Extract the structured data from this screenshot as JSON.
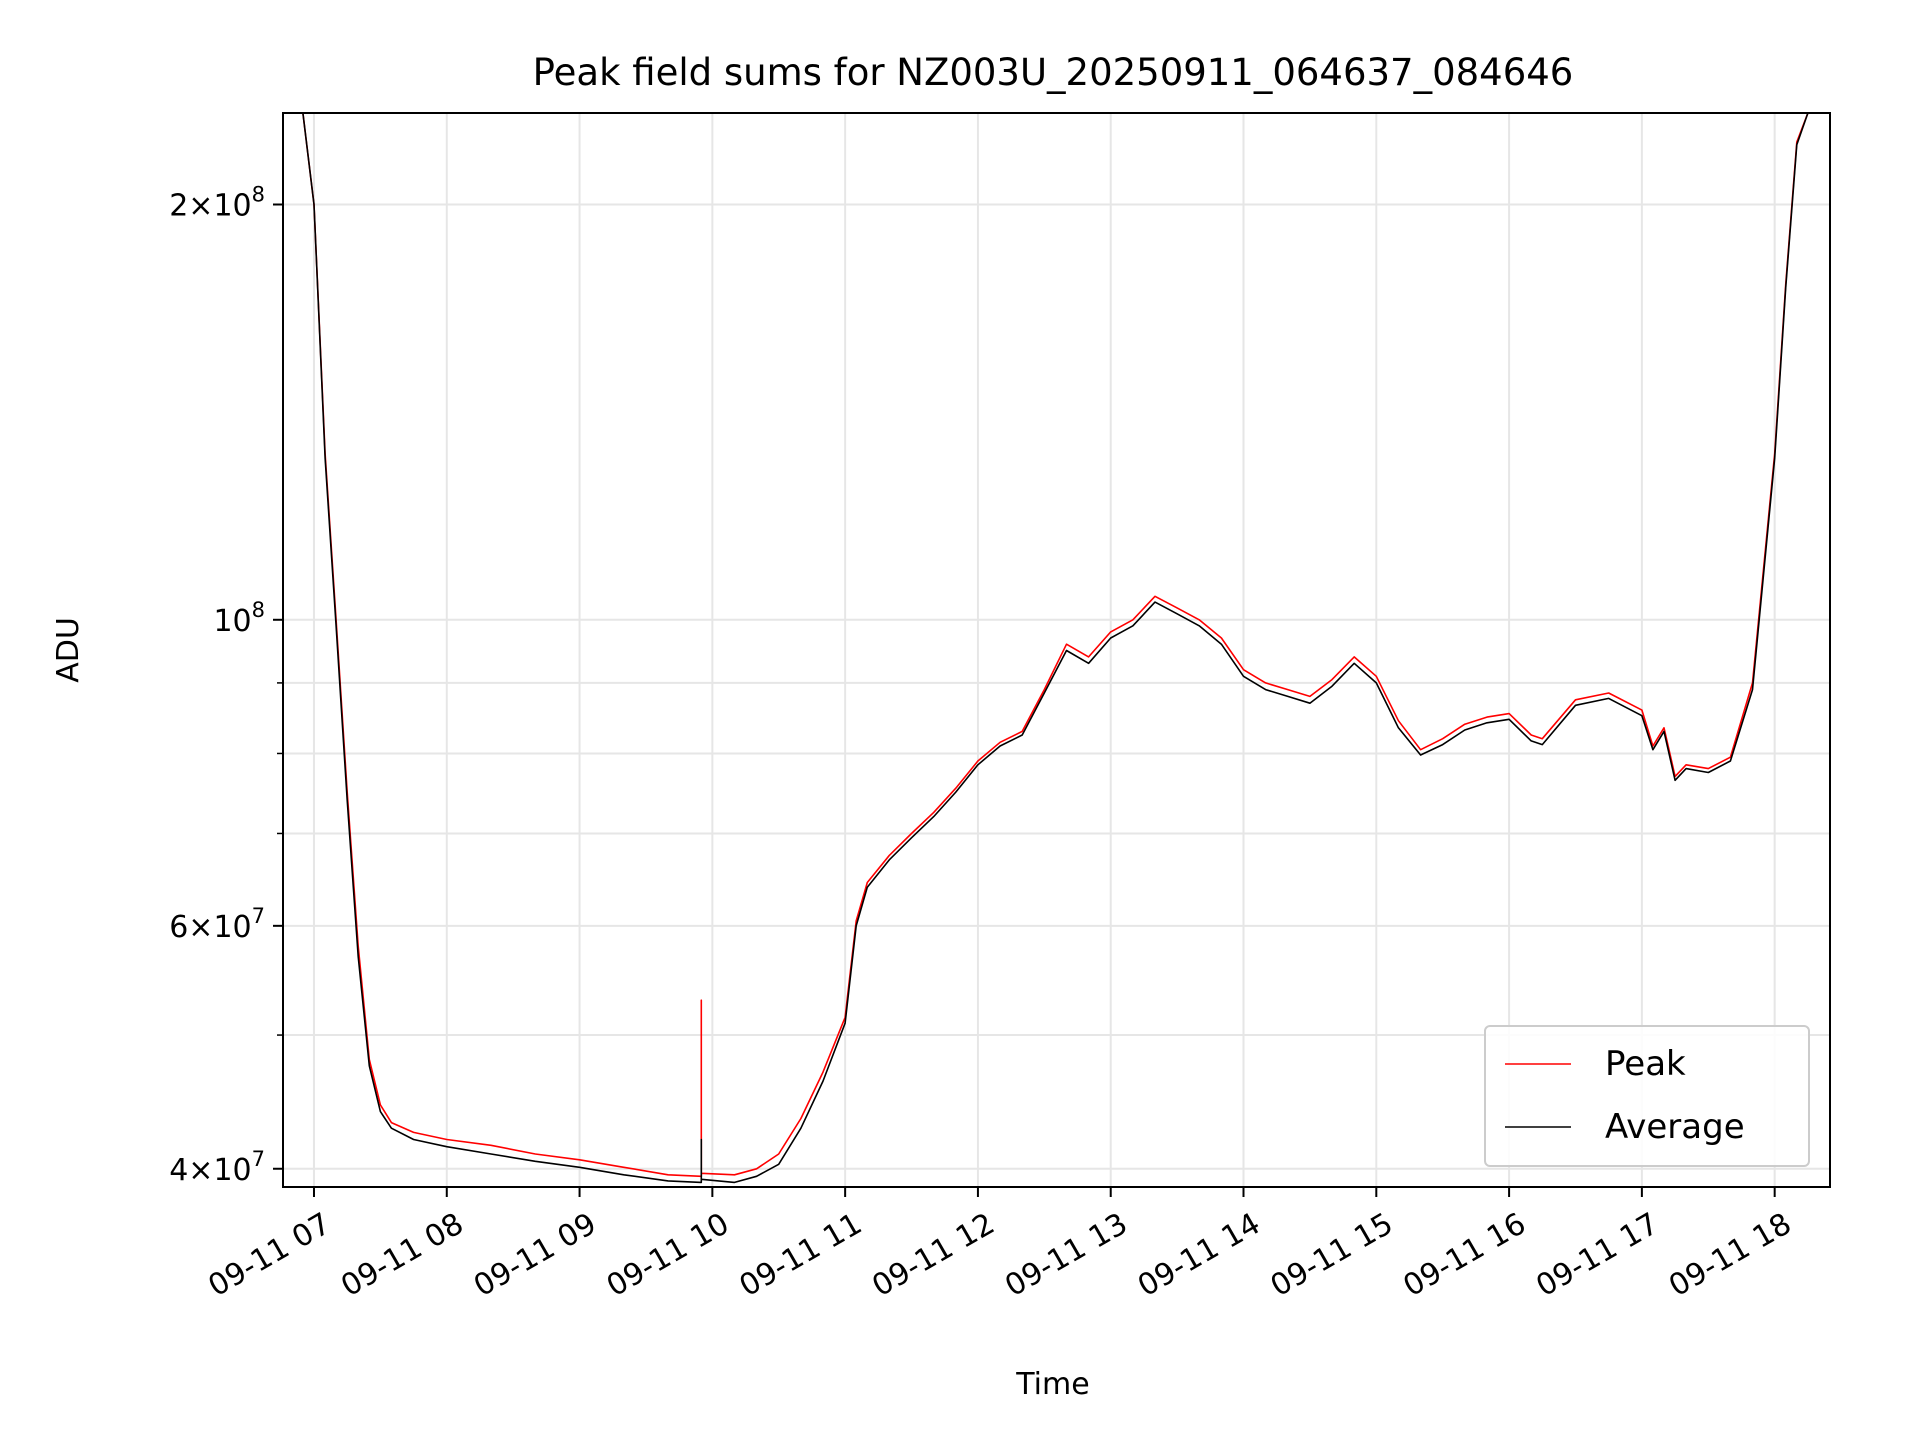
{
  "chart_data": {
    "type": "line",
    "title": "Peak field sums for NZ003U_20250911_064637_084646",
    "xlabel": "Time",
    "ylabel": "ADU",
    "yscale": "log",
    "grid": true,
    "legend_position": "lower-right",
    "xlim": [
      "2025-09-11 06:46",
      "2025-09-11 18:25"
    ],
    "ylim": [
      38800000,
      233000000
    ],
    "x_ticks": [
      "09-11 07",
      "09-11 08",
      "09-11 09",
      "09-11 10",
      "09-11 11",
      "09-11 12",
      "09-11 13",
      "09-11 14",
      "09-11 15",
      "09-11 16",
      "09-11 17",
      "09-11 18"
    ],
    "y_major_ticks": [
      {
        "value": 40000000,
        "mantissa": "4",
        "exponent": "7"
      },
      {
        "value": 60000000,
        "mantissa": "6",
        "exponent": "7"
      },
      {
        "value": 100000000,
        "mantissa": "",
        "exponent": "8"
      },
      {
        "value": 200000000,
        "mantissa": "2",
        "exponent": "8"
      }
    ],
    "y_minor_ticks": [
      50000000,
      70000000,
      80000000,
      90000000
    ],
    "series": [
      {
        "name": "Peak",
        "color": "#ff0000",
        "points": [
          [
            "2025-09-11 06:47",
            233000000
          ],
          [
            "2025-09-11 06:55",
            233000000
          ],
          [
            "2025-09-11 07:00",
            200000000
          ],
          [
            "2025-09-11 07:05",
            132000000
          ],
          [
            "2025-09-11 07:10",
            100000000
          ],
          [
            "2025-09-11 07:15",
            75000000
          ],
          [
            "2025-09-11 07:20",
            58000000
          ],
          [
            "2025-09-11 07:25",
            48000000
          ],
          [
            "2025-09-11 07:30",
            44500000
          ],
          [
            "2025-09-11 07:35",
            43200000
          ],
          [
            "2025-09-11 07:45",
            42500000
          ],
          [
            "2025-09-11 08:00",
            42000000
          ],
          [
            "2025-09-11 08:20",
            41600000
          ],
          [
            "2025-09-11 08:40",
            41000000
          ],
          [
            "2025-09-11 09:00",
            40600000
          ],
          [
            "2025-09-11 09:20",
            40100000
          ],
          [
            "2025-09-11 09:40",
            39600000
          ],
          [
            "2025-09-11 09:55",
            39500000
          ],
          [
            "2025-09-11 09:55",
            53000000
          ],
          [
            "2025-09-11 09:55",
            39700000
          ],
          [
            "2025-09-11 10:10",
            39600000
          ],
          [
            "2025-09-11 10:20",
            40000000
          ],
          [
            "2025-09-11 10:30",
            41000000
          ],
          [
            "2025-09-11 10:40",
            43500000
          ],
          [
            "2025-09-11 10:50",
            47000000
          ],
          [
            "2025-09-11 11:00",
            51500000
          ],
          [
            "2025-09-11 11:05",
            60500000
          ],
          [
            "2025-09-11 11:10",
            64500000
          ],
          [
            "2025-09-11 11:20",
            67500000
          ],
          [
            "2025-09-11 11:30",
            70000000
          ],
          [
            "2025-09-11 11:40",
            72500000
          ],
          [
            "2025-09-11 11:50",
            75500000
          ],
          [
            "2025-09-11 12:00",
            79000000
          ],
          [
            "2025-09-11 12:10",
            81500000
          ],
          [
            "2025-09-11 12:20",
            83000000
          ],
          [
            "2025-09-11 12:30",
            89000000
          ],
          [
            "2025-09-11 12:40",
            96000000
          ],
          [
            "2025-09-11 12:50",
            94000000
          ],
          [
            "2025-09-11 13:00",
            98000000
          ],
          [
            "2025-09-11 13:10",
            100000000
          ],
          [
            "2025-09-11 13:20",
            104000000
          ],
          [
            "2025-09-11 13:30",
            102000000
          ],
          [
            "2025-09-11 13:40",
            100000000
          ],
          [
            "2025-09-11 13:50",
            97000000
          ],
          [
            "2025-09-11 14:00",
            92000000
          ],
          [
            "2025-09-11 14:10",
            90000000
          ],
          [
            "2025-09-11 14:20",
            89000000
          ],
          [
            "2025-09-11 14:30",
            88000000
          ],
          [
            "2025-09-11 14:40",
            90500000
          ],
          [
            "2025-09-11 14:50",
            94000000
          ],
          [
            "2025-09-11 15:00",
            91000000
          ],
          [
            "2025-09-11 15:10",
            84500000
          ],
          [
            "2025-09-11 15:20",
            80500000
          ],
          [
            "2025-09-11 15:30",
            82000000
          ],
          [
            "2025-09-11 15:40",
            84000000
          ],
          [
            "2025-09-11 15:50",
            85000000
          ],
          [
            "2025-09-11 16:00",
            85500000
          ],
          [
            "2025-09-11 16:10",
            82500000
          ],
          [
            "2025-09-11 16:15",
            82000000
          ],
          [
            "2025-09-11 16:30",
            87500000
          ],
          [
            "2025-09-11 16:45",
            88500000
          ],
          [
            "2025-09-11 17:00",
            86000000
          ],
          [
            "2025-09-11 17:05",
            81000000
          ],
          [
            "2025-09-11 17:10",
            83500000
          ],
          [
            "2025-09-11 17:15",
            77000000
          ],
          [
            "2025-09-11 17:20",
            78500000
          ],
          [
            "2025-09-11 17:30",
            78000000
          ],
          [
            "2025-09-11 17:40",
            79500000
          ],
          [
            "2025-09-11 17:50",
            90000000
          ],
          [
            "2025-09-11 18:00",
            132000000
          ],
          [
            "2025-09-11 18:05",
            175000000
          ],
          [
            "2025-09-11 18:10",
            222000000
          ],
          [
            "2025-09-11 18:15",
            233000000
          ],
          [
            "2025-09-11 18:25",
            233000000
          ]
        ]
      },
      {
        "name": "Average",
        "color": "#000000",
        "points": [
          [
            "2025-09-11 06:47",
            233000000
          ],
          [
            "2025-09-11 06:55",
            233000000
          ],
          [
            "2025-09-11 07:00",
            200000000
          ],
          [
            "2025-09-11 07:05",
            131000000
          ],
          [
            "2025-09-11 07:10",
            99000000
          ],
          [
            "2025-09-11 07:15",
            74000000
          ],
          [
            "2025-09-11 07:20",
            57000000
          ],
          [
            "2025-09-11 07:25",
            47500000
          ],
          [
            "2025-09-11 07:30",
            44000000
          ],
          [
            "2025-09-11 07:35",
            42800000
          ],
          [
            "2025-09-11 07:45",
            42000000
          ],
          [
            "2025-09-11 08:00",
            41500000
          ],
          [
            "2025-09-11 08:20",
            41000000
          ],
          [
            "2025-09-11 08:40",
            40500000
          ],
          [
            "2025-09-11 09:00",
            40100000
          ],
          [
            "2025-09-11 09:20",
            39600000
          ],
          [
            "2025-09-11 09:40",
            39200000
          ],
          [
            "2025-09-11 09:55",
            39100000
          ],
          [
            "2025-09-11 09:55",
            42000000
          ],
          [
            "2025-09-11 09:55",
            39300000
          ],
          [
            "2025-09-11 10:10",
            39100000
          ],
          [
            "2025-09-11 10:20",
            39500000
          ],
          [
            "2025-09-11 10:30",
            40300000
          ],
          [
            "2025-09-11 10:40",
            42800000
          ],
          [
            "2025-09-11 10:50",
            46300000
          ],
          [
            "2025-09-11 11:00",
            51000000
          ],
          [
            "2025-09-11 11:05",
            60000000
          ],
          [
            "2025-09-11 11:10",
            64000000
          ],
          [
            "2025-09-11 11:20",
            67000000
          ],
          [
            "2025-09-11 11:30",
            69500000
          ],
          [
            "2025-09-11 11:40",
            72000000
          ],
          [
            "2025-09-11 11:50",
            75000000
          ],
          [
            "2025-09-11 12:00",
            78500000
          ],
          [
            "2025-09-11 12:10",
            81000000
          ],
          [
            "2025-09-11 12:20",
            82500000
          ],
          [
            "2025-09-11 12:30",
            88500000
          ],
          [
            "2025-09-11 12:40",
            95000000
          ],
          [
            "2025-09-11 12:50",
            93000000
          ],
          [
            "2025-09-11 13:00",
            97000000
          ],
          [
            "2025-09-11 13:10",
            99000000
          ],
          [
            "2025-09-11 13:20",
            103000000
          ],
          [
            "2025-09-11 13:30",
            101000000
          ],
          [
            "2025-09-11 13:40",
            99000000
          ],
          [
            "2025-09-11 13:50",
            96000000
          ],
          [
            "2025-09-11 14:00",
            91000000
          ],
          [
            "2025-09-11 14:10",
            89000000
          ],
          [
            "2025-09-11 14:20",
            88000000
          ],
          [
            "2025-09-11 14:30",
            87000000
          ],
          [
            "2025-09-11 14:40",
            89500000
          ],
          [
            "2025-09-11 14:50",
            93000000
          ],
          [
            "2025-09-11 15:00",
            90000000
          ],
          [
            "2025-09-11 15:10",
            83500000
          ],
          [
            "2025-09-11 15:20",
            79800000
          ],
          [
            "2025-09-11 15:30",
            81200000
          ],
          [
            "2025-09-11 15:40",
            83200000
          ],
          [
            "2025-09-11 15:50",
            84200000
          ],
          [
            "2025-09-11 16:00",
            84700000
          ],
          [
            "2025-09-11 16:10",
            81700000
          ],
          [
            "2025-09-11 16:15",
            81200000
          ],
          [
            "2025-09-11 16:30",
            86700000
          ],
          [
            "2025-09-11 16:45",
            87700000
          ],
          [
            "2025-09-11 17:00",
            85200000
          ],
          [
            "2025-09-11 17:05",
            80500000
          ],
          [
            "2025-09-11 17:10",
            83000000
          ],
          [
            "2025-09-11 17:15",
            76500000
          ],
          [
            "2025-09-11 17:20",
            78000000
          ],
          [
            "2025-09-11 17:30",
            77500000
          ],
          [
            "2025-09-11 17:40",
            79000000
          ],
          [
            "2025-09-11 17:50",
            89000000
          ],
          [
            "2025-09-11 18:00",
            131000000
          ],
          [
            "2025-09-11 18:05",
            174000000
          ],
          [
            "2025-09-11 18:10",
            221000000
          ],
          [
            "2025-09-11 18:15",
            233000000
          ],
          [
            "2025-09-11 18:25",
            233000000
          ]
        ]
      }
    ]
  }
}
